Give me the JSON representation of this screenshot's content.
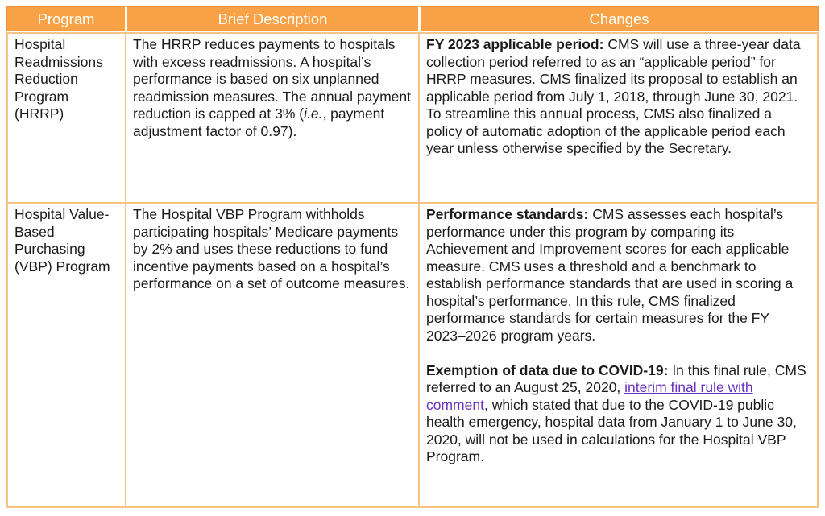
{
  "colors": {
    "header_bg": "#F9A245",
    "header_outline": "#F0923B",
    "header_text": "#FFFFFF",
    "grid": "#F6C487",
    "text": "#1B1B1B",
    "link": "#6932BE",
    "page_bg": "#FFFFFF"
  },
  "header": {
    "columns": [
      "Program",
      "Brief Description",
      "Changes"
    ]
  },
  "rows": [
    {
      "program": "Hospital Readmissions Reduction Program (HRRP)",
      "description": {
        "pre": "The HRRP reduces payments to hospitals with excess readmissions. A hospital’s performance is based on six unplanned readmission measures. The annual payment reduction is capped at 3% (",
        "italic": "i.e.",
        "post": ", payment adjustment factor of 0.97)."
      },
      "changes": [
        {
          "label": "FY 2023 applicable period:",
          "text": " CMS will use a three-year data collection period referred to as an “applicable period” for HRRP measures. CMS finalized its proposal to establish an applicable period from July 1, 2018, through June 30, 2021. To streamline this annual process, CMS also finalized a policy of automatic adoption of the applicable period each year unless otherwise specified by the Secretary."
        }
      ]
    },
    {
      "program": "Hospital Value-Based Purchasing (VBP) Program",
      "description": "The Hospital VBP Program withholds participating hospitals’ Medicare payments by 2% and uses these reductions to fund incentive payments based on a hospital’s performance on a set of outcome measures.",
      "changes": [
        {
          "label": "Performance standards:",
          "text": " CMS assesses each hospital’s performance under this program by comparing its Achievement and Improvement scores for each applicable measure. CMS uses a threshold and a benchmark to establish performance standards that are used in scoring a hospital’s performance. In this rule, CMS finalized performance standards for certain measures for the FY 2023–2026 program years."
        },
        {
          "label": "Exemption of data due to COVID-19:",
          "pre_link": " In this final rule, CMS referred to an August 25, 2020, ",
          "link_text": "interim final rule with comment",
          "post_link": ", which stated that due to the COVID-19 public health emergency, hospital data from January 1 to June 30, 2020, will not be used in calculations for the Hospital VBP Program."
        }
      ]
    }
  ]
}
